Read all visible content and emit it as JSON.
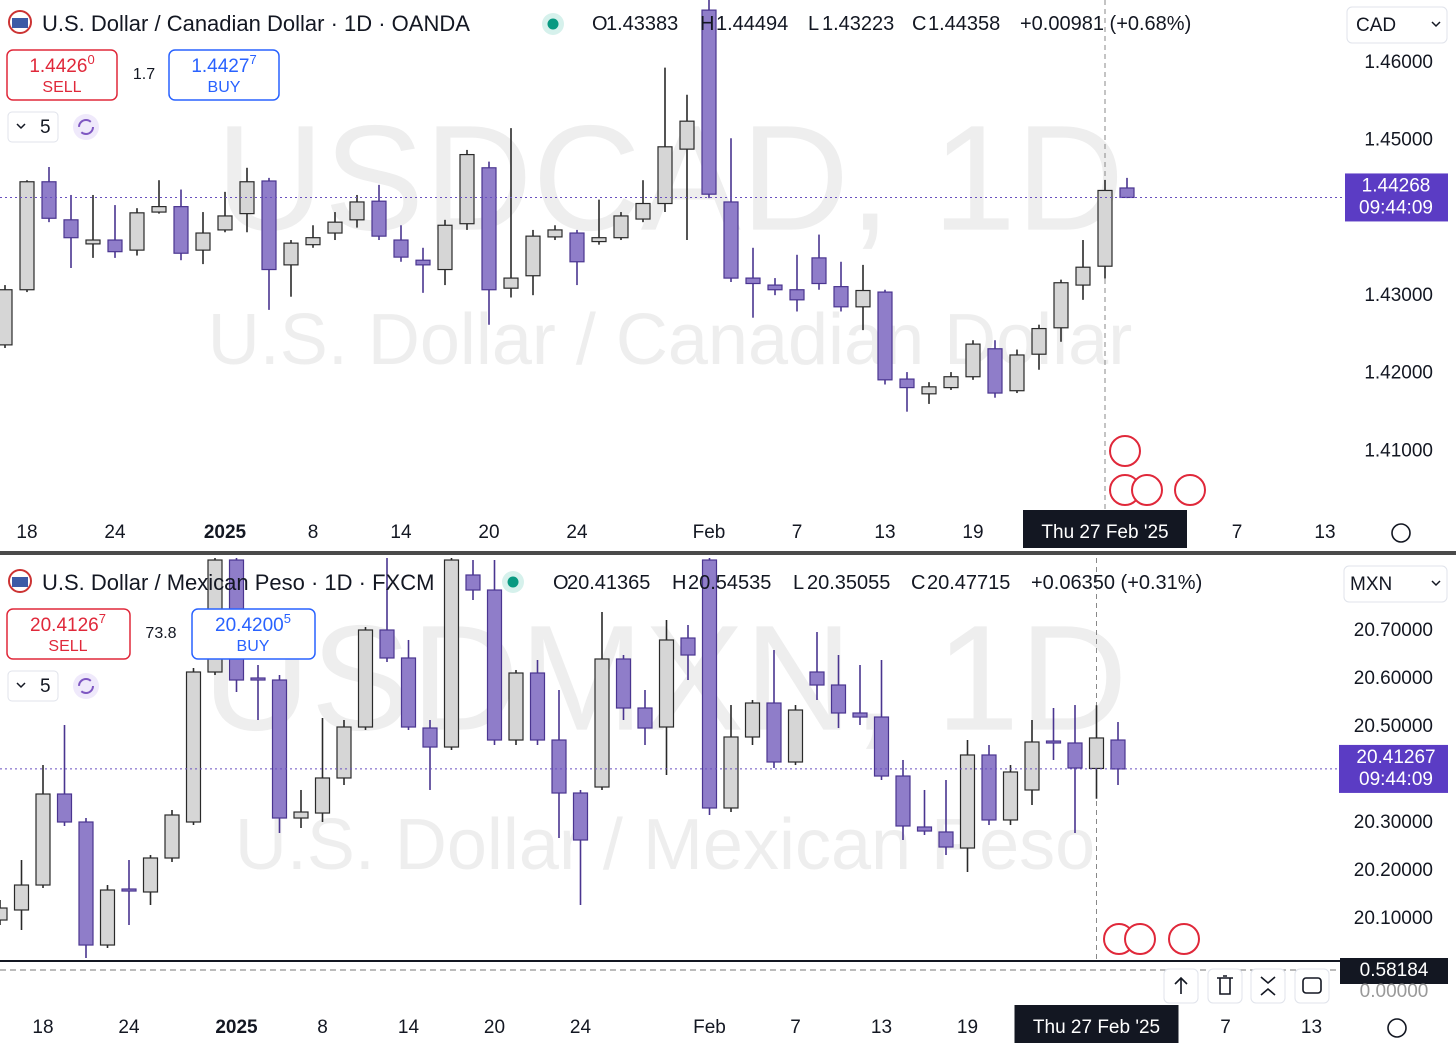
{
  "legend_labels": [
    "O",
    "H",
    "L",
    "C"
  ],
  "indicator": {
    "value": 0.58184,
    "zero_label": "0.00000"
  },
  "chart_data": [
    {
      "type": "candlestick",
      "title": "U.S. Dollar / Canadian Dollar · 1D · OANDA",
      "change": "+0.00981 (+0.68%)",
      "currency": "CAD",
      "sell": {
        "main": "1.4426",
        "pip": "0",
        "label": "SELL"
      },
      "spread": "1.7",
      "buy": {
        "main": "1.4427",
        "pip": "7",
        "label": "BUY"
      },
      "interval": "5",
      "watermark": [
        "USDCAD, 1D",
        "U.S. Dollar / Canadian Dollar"
      ],
      "countdown": "09:44:09",
      "up_color": "#d6d6d6",
      "down_color": "#8f7dc9",
      "grid": false,
      "ylim": [
        1.4018,
        1.4681
      ],
      "yticks": [
        {
          "value": 1.46,
          "label": "1.46000"
        },
        {
          "value": 1.45,
          "label": "1.45000"
        },
        {
          "value": 1.43,
          "label": "1.43000"
        },
        {
          "value": 1.42,
          "label": "1.42000"
        },
        {
          "value": 1.41,
          "label": "1.41000"
        }
      ],
      "categories": [
        null,
        "18",
        null,
        null,
        null,
        "24",
        null,
        null,
        null,
        null,
        "2025",
        null,
        null,
        null,
        "8",
        null,
        null,
        null,
        "14",
        null,
        null,
        null,
        "20",
        null,
        null,
        null,
        "24",
        null,
        null,
        null,
        null,
        null,
        "Feb",
        null,
        null,
        null,
        "7",
        null,
        null,
        null,
        "13",
        null,
        null,
        null,
        "19",
        null,
        null,
        null,
        null,
        null,
        "Thu 27 Feb '25",
        null
      ],
      "future_ticks": [
        "7",
        "13"
      ],
      "open": [
        1.4237,
        1.4308,
        1.4447,
        1.4398,
        1.4367,
        1.4372,
        1.4359,
        1.4408,
        1.4415,
        1.4359,
        1.4385,
        1.4406,
        1.4448,
        1.434,
        1.4366,
        1.4381,
        1.4398,
        1.4422,
        1.4372,
        1.4346,
        1.4334,
        1.4393,
        1.4465,
        1.431,
        1.4326,
        1.4376,
        1.4381,
        1.437,
        1.4375,
        1.4399,
        1.4419,
        1.4489,
        1.4668,
        1.4421,
        1.4323,
        1.4314,
        1.4308,
        1.4349,
        1.4312,
        1.4286,
        1.4305,
        1.4193,
        1.4174,
        1.4182,
        1.4196,
        1.4232,
        1.4178,
        1.4225,
        1.4259,
        1.4314,
        1.43383,
        1.4439
      ],
      "high": [
        1.4314,
        1.4449,
        1.4466,
        1.443,
        1.443,
        1.4417,
        1.4413,
        1.4449,
        1.4437,
        1.4408,
        1.4434,
        1.4465,
        1.4452,
        1.4372,
        1.4391,
        1.4408,
        1.443,
        1.4443,
        1.4391,
        1.4362,
        1.4398,
        1.4488,
        1.4473,
        1.4516,
        1.4385,
        1.4391,
        1.4385,
        1.4424,
        1.4408,
        1.4449,
        1.4594,
        1.4559,
        1.4681,
        1.4503,
        1.4362,
        1.4323,
        1.4353,
        1.4379,
        1.4344,
        1.434,
        1.4308,
        1.4202,
        1.4189,
        1.4202,
        1.4243,
        1.4243,
        1.4231,
        1.4263,
        1.4321,
        1.4372,
        1.44494,
        1.4452
      ],
      "low": [
        1.4233,
        1.4305,
        1.4395,
        1.4336,
        1.4349,
        1.4349,
        1.4352,
        1.4406,
        1.4346,
        1.4341,
        1.4382,
        1.4382,
        1.4282,
        1.4299,
        1.4362,
        1.4372,
        1.4388,
        1.4372,
        1.4344,
        1.4304,
        1.4314,
        1.4385,
        1.4263,
        1.4298,
        1.4301,
        1.4372,
        1.4314,
        1.4366,
        1.4372,
        1.4395,
        1.4408,
        1.4372,
        1.4426,
        1.4318,
        1.4272,
        1.4301,
        1.428,
        1.4308,
        1.428,
        1.4256,
        1.4186,
        1.4151,
        1.4161,
        1.4179,
        1.4192,
        1.4169,
        1.4175,
        1.4205,
        1.4241,
        1.4295,
        1.43223,
        1.4426
      ],
      "close": [
        1.4308,
        1.4447,
        1.44,
        1.4375,
        1.4372,
        1.4357,
        1.4407,
        1.4415,
        1.4355,
        1.4381,
        1.4403,
        1.4447,
        1.4334,
        1.4368,
        1.4375,
        1.4395,
        1.4421,
        1.4377,
        1.435,
        1.434,
        1.4391,
        1.4482,
        1.4308,
        1.4323,
        1.4377,
        1.4385,
        1.4344,
        1.4375,
        1.4403,
        1.4419,
        1.4492,
        1.4525,
        1.4431,
        1.4323,
        1.4316,
        1.4308,
        1.4295,
        1.4316,
        1.4286,
        1.4307,
        1.4192,
        1.4182,
        1.4183,
        1.4196,
        1.4238,
        1.4175,
        1.4224,
        1.4258,
        1.4317,
        1.4337,
        1.44358,
        1.44268
      ]
    },
    {
      "type": "candlestick",
      "title": "U.S. Dollar / Mexican Peso · 1D · FXCM",
      "change": "+0.06350 (+0.31%)",
      "currency": "MXN",
      "sell": {
        "main": "20.4126",
        "pip": "7",
        "label": "SELL"
      },
      "spread": "73.8",
      "buy": {
        "main": "20.4200",
        "pip": "5",
        "label": "BUY"
      },
      "interval": "5",
      "watermark": [
        "USDMXN, 1D",
        "U.S. Dollar / Mexican Peso"
      ],
      "countdown": "09:44:09",
      "up_color": "#d6d6d6",
      "down_color": "#8f7dc9",
      "grid": false,
      "ylim": [
        20.0146,
        20.8521
      ],
      "yticks": [
        {
          "value": 20.7,
          "label": "20.70000"
        },
        {
          "value": 20.6,
          "label": "20.60000"
        },
        {
          "value": 20.5,
          "label": "20.50000"
        },
        {
          "value": 20.3,
          "label": "20.30000"
        },
        {
          "value": 20.2,
          "label": "20.20000"
        },
        {
          "value": 20.1,
          "label": "20.10000"
        }
      ],
      "categories": [
        null,
        null,
        "18",
        null,
        null,
        null,
        "24",
        null,
        null,
        null,
        null,
        "2025",
        null,
        null,
        null,
        "8",
        null,
        null,
        null,
        "14",
        null,
        null,
        null,
        "20",
        null,
        null,
        null,
        "24",
        null,
        null,
        null,
        null,
        null,
        "Feb",
        null,
        null,
        null,
        "7",
        null,
        null,
        null,
        "13",
        null,
        null,
        null,
        "19",
        null,
        null,
        null,
        null,
        null,
        "Thu 27 Feb '25",
        null
      ],
      "future_ticks": [
        "7",
        "13"
      ],
      "open": [
        20.0979,
        20.1188,
        20.1708,
        20.3604,
        20.3021,
        20.0458,
        20.1625,
        20.1563,
        20.2271,
        20.3021,
        20.6146,
        20.8479,
        20.6021,
        20.5979,
        20.3104,
        20.3208,
        20.3938,
        20.5,
        20.7021,
        20.6438,
        20.4979,
        20.4583,
        20.8167,
        20.7854,
        20.4729,
        20.6125,
        20.4729,
        20.3625,
        20.375,
        20.6417,
        20.5396,
        20.5,
        20.6854,
        20.8479,
        20.3313,
        20.4792,
        20.55,
        20.4271,
        20.6146,
        20.5875,
        20.5292,
        20.5208,
        20.3979,
        20.2917,
        20.2813,
        20.2479,
        20.4417,
        20.3063,
        20.3688,
        20.4708,
        20.4667,
        20.41365,
        20.4729
      ],
      "high": [
        20.1396,
        20.2229,
        20.4208,
        20.5042,
        20.3104,
        20.1708,
        20.2229,
        20.2333,
        20.3271,
        20.6229,
        20.8583,
        20.8583,
        20.6292,
        20.6083,
        20.3688,
        20.5188,
        20.5146,
        20.7083,
        20.8521,
        20.6813,
        20.5146,
        20.8583,
        20.8479,
        20.8479,
        20.6188,
        20.6396,
        20.5771,
        20.3688,
        20.7396,
        20.65,
        20.5771,
        20.7229,
        20.7125,
        20.8583,
        20.5458,
        20.5563,
        20.6604,
        20.5458,
        20.6979,
        20.65,
        20.6292,
        20.6396,
        20.4313,
        20.3688,
        20.3896,
        20.4729,
        20.4625,
        20.4208,
        20.5146,
        20.5396,
        20.5458,
        20.54535,
        20.5104
      ],
      "low": [
        20.0875,
        20.0771,
        20.1646,
        20.2938,
        20.0188,
        20.0396,
        20.0875,
        20.1292,
        20.2188,
        20.2958,
        20.6083,
        20.5729,
        20.5146,
        20.2792,
        20.2896,
        20.3021,
        20.3792,
        20.4938,
        20.6354,
        20.4938,
        20.3688,
        20.4521,
        20.7646,
        20.4625,
        20.4625,
        20.4625,
        20.2688,
        20.1292,
        20.3688,
        20.5146,
        20.4625,
        20.4,
        20.5979,
        20.3167,
        20.3229,
        20.4625,
        20.4146,
        20.4208,
        20.5563,
        20.4979,
        20.5042,
        20.3896,
        20.2646,
        20.275,
        20.2333,
        20.1979,
        20.2958,
        20.2958,
        20.3375,
        20.4313,
        20.2792,
        20.35055,
        20.3792
      ],
      "close": [
        20.1229,
        20.1708,
        20.3604,
        20.3021,
        20.0458,
        20.1604,
        20.1583,
        20.2271,
        20.3167,
        20.6146,
        20.8479,
        20.5979,
        20.5979,
        20.3104,
        20.3229,
        20.3938,
        20.5,
        20.7021,
        20.6438,
        20.5,
        20.4583,
        20.8479,
        20.7854,
        20.4729,
        20.6125,
        20.4729,
        20.3625,
        20.2646,
        20.6417,
        20.5396,
        20.4979,
        20.6813,
        20.65,
        20.3313,
        20.4792,
        20.55,
        20.4271,
        20.5354,
        20.5875,
        20.5292,
        20.5208,
        20.3979,
        20.2938,
        20.2833,
        20.25,
        20.4417,
        20.3063,
        20.4063,
        20.4688,
        20.4667,
        20.4146,
        20.47715,
        20.41267
      ]
    }
  ]
}
